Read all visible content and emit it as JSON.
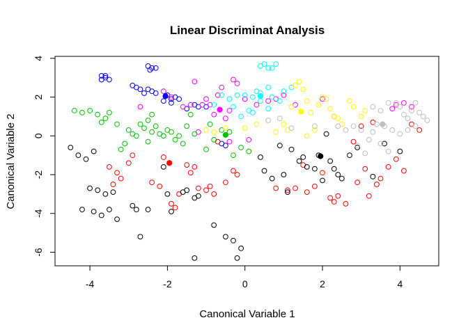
{
  "chart_data": {
    "type": "scatter",
    "title": "Linear Discriminat Analysis",
    "xlabel": "Canonical Variable 1",
    "ylabel": "Canonical Variable 2",
    "xlim": [
      -4.9,
      5.0
    ],
    "ylim": [
      -6.7,
      4.1
    ],
    "xticks": [
      -4,
      -2,
      0,
      2,
      4
    ],
    "yticks": [
      -6,
      -4,
      -2,
      0,
      2,
      4
    ],
    "grid": false,
    "legend": "none",
    "series": [
      {
        "color": "#0000ff",
        "points": [
          [
            -3.7,
            3.1
          ],
          [
            -3.6,
            3.0
          ],
          [
            -3.7,
            2.9
          ],
          [
            -3.5,
            2.9
          ],
          [
            -3.6,
            3.1
          ],
          [
            -2.9,
            2.6
          ],
          [
            -2.8,
            2.5
          ],
          [
            -2.7,
            2.4
          ],
          [
            -2.5,
            3.6
          ],
          [
            -2.4,
            3.5
          ],
          [
            -2.3,
            3.5
          ],
          [
            -2.45,
            3.4
          ],
          [
            -2.5,
            2.4
          ],
          [
            -2.4,
            2.3
          ],
          [
            -2.3,
            2.2
          ],
          [
            -2.6,
            2.2
          ],
          [
            -2.0,
            2.1
          ],
          [
            -1.9,
            1.9
          ],
          [
            -1.8,
            2.0
          ],
          [
            -2.1,
            1.8
          ],
          [
            -1.9,
            1.7
          ],
          [
            -1.7,
            1.9
          ],
          [
            -1.2,
            1.5
          ],
          [
            -1.3,
            1.6
          ],
          [
            -0.6,
            -0.4
          ],
          [
            -0.5,
            -0.5
          ],
          [
            -1.5,
            1.4
          ],
          [
            -1.0,
            1.5
          ]
        ],
        "centroid": [
          -2.05,
          2.05
        ]
      },
      {
        "color": "#00c000",
        "points": [
          [
            -4.4,
            1.3
          ],
          [
            -4.2,
            1.2
          ],
          [
            -4.0,
            1.3
          ],
          [
            -3.8,
            1.1
          ],
          [
            -3.7,
            0.7
          ],
          [
            -3.5,
            1.2
          ],
          [
            -3.3,
            0.6
          ],
          [
            -3.0,
            0.3
          ],
          [
            -3.1,
            -0.4
          ],
          [
            -2.8,
            0.0
          ],
          [
            -2.7,
            0.6
          ],
          [
            -2.6,
            0.4
          ],
          [
            -2.5,
            0.8
          ],
          [
            -2.4,
            1.1
          ],
          [
            -2.3,
            0.5
          ],
          [
            -2.2,
            0.1
          ],
          [
            -2.1,
            0.0
          ],
          [
            -2.0,
            0.3
          ],
          [
            -1.9,
            0.2
          ],
          [
            -1.8,
            -0.2
          ],
          [
            -1.7,
            0.0
          ],
          [
            -1.6,
            -0.4
          ],
          [
            -1.5,
            0.5
          ],
          [
            -1.3,
            0.1
          ],
          [
            -1.0,
            -0.7
          ],
          [
            -0.8,
            -0.2
          ],
          [
            -0.6,
            0.3
          ],
          [
            -0.4,
            0.2
          ],
          [
            -0.3,
            -1.0
          ],
          [
            -0.1,
            -0.6
          ],
          [
            0.1,
            -0.8
          ],
          [
            -2.5,
            -0.3
          ],
          [
            -3.2,
            -0.7
          ],
          [
            -2.9,
            0.1
          ],
          [
            -0.9,
            0.6
          ],
          [
            -1.4,
            1.1
          ],
          [
            -2.4,
            0.2
          ],
          [
            -3.6,
            0.9
          ]
        ],
        "centroid": [
          -0.5,
          0.05
        ]
      },
      {
        "color": "#ff0000",
        "points": [
          [
            -3.5,
            -1.6
          ],
          [
            -3.3,
            -1.9
          ],
          [
            -3.2,
            -2.2
          ],
          [
            -3.4,
            -2.5
          ],
          [
            -3.0,
            -1.4
          ],
          [
            -2.9,
            -1.0
          ],
          [
            -2.4,
            -2.4
          ],
          [
            -2.2,
            -2.6
          ],
          [
            -1.9,
            -3.5
          ],
          [
            -1.8,
            -3.7
          ],
          [
            -1.7,
            -3.0
          ],
          [
            -1.5,
            -1.5
          ],
          [
            -1.4,
            -1.9
          ],
          [
            -1.2,
            -2.7
          ],
          [
            -1.0,
            -2.8
          ],
          [
            -0.9,
            -2.6
          ],
          [
            -0.8,
            -3.0
          ],
          [
            -0.5,
            -2.4
          ],
          [
            -0.3,
            -1.8
          ],
          [
            -0.2,
            -2.0
          ],
          [
            0.8,
            -2.7
          ],
          [
            1.1,
            -2.8
          ],
          [
            1.3,
            -2.7
          ],
          [
            1.5,
            -1.5
          ],
          [
            1.6,
            -2.9
          ],
          [
            1.8,
            -2.6
          ],
          [
            2.0,
            -1.9
          ],
          [
            2.2,
            -3.2
          ],
          [
            2.3,
            -3.4
          ],
          [
            2.4,
            -3.1
          ],
          [
            2.6,
            -3.5
          ],
          [
            2.9,
            -2.4
          ],
          [
            3.1,
            -1.7
          ],
          [
            3.2,
            -3.1
          ],
          [
            3.4,
            -2.5
          ],
          [
            3.5,
            -2.2
          ],
          [
            3.7,
            -1.6
          ],
          [
            3.9,
            -1.2
          ],
          [
            4.1,
            -1.8
          ],
          [
            3.0,
            0.5
          ],
          [
            2.8,
            -0.3
          ],
          [
            -1.3,
            -1.6
          ],
          [
            -2.1,
            -1.1
          ],
          [
            -0.7,
            -0.3
          ],
          [
            3.3,
            0.7
          ],
          [
            4.3,
            0.6
          ],
          [
            4.5,
            0.3
          ]
        ],
        "centroid": [
          -1.95,
          -1.4
        ]
      },
      {
        "color": "#000000",
        "points": [
          [
            -4.5,
            -0.6
          ],
          [
            -4.3,
            -1.0
          ],
          [
            -4.1,
            -1.2
          ],
          [
            -3.9,
            -0.8
          ],
          [
            -4.0,
            -2.7
          ],
          [
            -3.8,
            -2.8
          ],
          [
            -3.6,
            -3.0
          ],
          [
            -3.4,
            -2.9
          ],
          [
            -4.2,
            -3.8
          ],
          [
            -3.9,
            -3.9
          ],
          [
            -3.7,
            -4.1
          ],
          [
            -3.5,
            -3.8
          ],
          [
            -3.3,
            -4.3
          ],
          [
            -2.9,
            -3.6
          ],
          [
            -2.8,
            -3.8
          ],
          [
            -2.7,
            -5.2
          ],
          [
            -2.5,
            -3.8
          ],
          [
            -2.1,
            -1.6
          ],
          [
            -2.0,
            -3.0
          ],
          [
            -1.9,
            -3.9
          ],
          [
            -1.5,
            -2.8
          ],
          [
            -1.3,
            -3.2
          ],
          [
            -1.2,
            -3.1
          ],
          [
            -1.3,
            -6.3
          ],
          [
            -0.5,
            -5.2
          ],
          [
            -0.3,
            -5.4
          ],
          [
            -0.2,
            -6.3
          ],
          [
            -0.1,
            -5.8
          ],
          [
            0.5,
            -1.8
          ],
          [
            0.7,
            -2.2
          ],
          [
            0.9,
            -0.5
          ],
          [
            1.0,
            -2.0
          ],
          [
            1.1,
            -2.9
          ],
          [
            1.2,
            -0.7
          ],
          [
            1.4,
            -1.3
          ],
          [
            1.5,
            -1.1
          ],
          [
            1.6,
            -1.6
          ],
          [
            1.8,
            -1.7
          ],
          [
            1.9,
            -1.0
          ],
          [
            2.0,
            -2.3
          ],
          [
            2.1,
            0.1
          ],
          [
            2.2,
            -1.3
          ],
          [
            2.3,
            -1.7
          ],
          [
            2.4,
            -2.0
          ],
          [
            2.5,
            -2.2
          ],
          [
            2.7,
            -1.0
          ],
          [
            2.9,
            -0.6
          ],
          [
            3.3,
            -2.1
          ],
          [
            3.6,
            -0.4
          ],
          [
            4.0,
            -0.8
          ],
          [
            -0.8,
            -4.6
          ],
          [
            -1.6,
            -2.9
          ],
          [
            0.4,
            -1.1
          ]
        ],
        "centroid": [
          1.95,
          -1.05
        ]
      },
      {
        "color": "#ff00ff",
        "points": [
          [
            -2.7,
            1.5
          ],
          [
            -2.1,
            2.3
          ],
          [
            -1.9,
            2.0
          ],
          [
            -1.6,
            1.5
          ],
          [
            -1.4,
            1.6
          ],
          [
            -1.1,
            1.6
          ],
          [
            -1.0,
            1.9
          ],
          [
            -0.9,
            1.6
          ],
          [
            -0.7,
            2.1
          ],
          [
            -0.6,
            2.5
          ],
          [
            -0.4,
            1.3
          ],
          [
            -0.3,
            2.9
          ],
          [
            -0.2,
            2.7
          ],
          [
            0.0,
            1.9
          ],
          [
            0.3,
            1.6
          ],
          [
            0.6,
            1.8
          ],
          [
            0.8,
            1.9
          ],
          [
            1.0,
            2.1
          ],
          [
            1.3,
            1.6
          ],
          [
            2.0,
            1.9
          ],
          [
            -0.5,
            0.9
          ],
          [
            -0.8,
            1.1
          ],
          [
            -1.2,
            0.2
          ],
          [
            -0.4,
            -0.3
          ],
          [
            0.1,
            -0.2
          ],
          [
            2.3,
            1.0
          ],
          [
            3.8,
            1.4
          ],
          [
            3.9,
            1.6
          ],
          [
            4.1,
            1.7
          ],
          [
            4.3,
            1.5
          ],
          [
            -1.3,
            2.8
          ]
        ],
        "centroid": [
          -0.65,
          1.35
        ]
      },
      {
        "color": "#00ffff",
        "points": [
          [
            0.4,
            3.6
          ],
          [
            0.5,
            3.7
          ],
          [
            0.6,
            3.5
          ],
          [
            0.7,
            3.5
          ],
          [
            0.8,
            3.7
          ],
          [
            -0.8,
            1.6
          ],
          [
            -0.6,
            2.1
          ],
          [
            -0.4,
            1.9
          ],
          [
            -0.2,
            2.1
          ],
          [
            0.0,
            2.1
          ],
          [
            0.1,
            1.3
          ],
          [
            0.2,
            2.0
          ],
          [
            0.3,
            2.3
          ],
          [
            0.4,
            2.2
          ],
          [
            0.6,
            2.5
          ],
          [
            0.7,
            2.0
          ],
          [
            0.9,
            1.8
          ],
          [
            1.0,
            2.3
          ],
          [
            1.2,
            2.5
          ],
          [
            -0.3,
            1.5
          ],
          [
            -0.1,
            1.0
          ],
          [
            0.2,
            1.2
          ],
          [
            0.4,
            1.8
          ],
          [
            0.6,
            1.4
          ]
        ],
        "centroid": [
          0.4,
          2.05
        ]
      },
      {
        "color": "#ffff00",
        "points": [
          [
            1.2,
            1.5
          ],
          [
            1.3,
            2.6
          ],
          [
            1.4,
            2.8
          ],
          [
            1.5,
            2.4
          ],
          [
            1.6,
            1.8
          ],
          [
            1.7,
            1.2
          ],
          [
            1.8,
            0.3
          ],
          [
            1.9,
            1.6
          ],
          [
            2.0,
            2.0
          ],
          [
            2.1,
            1.9
          ],
          [
            2.2,
            1.4
          ],
          [
            2.3,
            1.0
          ],
          [
            2.5,
            0.6
          ],
          [
            2.7,
            1.8
          ],
          [
            2.8,
            1.5
          ],
          [
            3.0,
            1.0
          ],
          [
            3.1,
            1.3
          ],
          [
            1.0,
            0.6
          ],
          [
            0.8,
            0.2
          ],
          [
            -1.0,
            0.3
          ],
          [
            -0.8,
            0.2
          ],
          [
            -0.5,
            0.4
          ],
          [
            0.0,
            0.4
          ],
          [
            0.3,
            0.6
          ],
          [
            1.6,
            0.0
          ],
          [
            2.4,
            0.9
          ],
          [
            1.1,
            0.3
          ]
        ],
        "centroid": [
          1.45,
          1.25
        ]
      },
      {
        "color": "#bebebe",
        "points": [
          [
            3.3,
            1.5
          ],
          [
            3.5,
            1.3
          ],
          [
            3.7,
            1.7
          ],
          [
            3.9,
            1.7
          ],
          [
            4.0,
            1.5
          ],
          [
            4.1,
            1.1
          ],
          [
            4.2,
            0.9
          ],
          [
            4.3,
            1.3
          ],
          [
            4.4,
            1.7
          ],
          [
            4.5,
            1.2
          ],
          [
            4.6,
            1.0
          ],
          [
            4.7,
            0.8
          ],
          [
            4.4,
            0.5
          ],
          [
            4.2,
            0.3
          ],
          [
            4.0,
            0.1
          ],
          [
            3.8,
            0.3
          ],
          [
            3.6,
            0.5
          ],
          [
            3.4,
            0.6
          ],
          [
            3.3,
            0.2
          ],
          [
            3.2,
            -0.2
          ],
          [
            3.5,
            -0.4
          ],
          [
            3.7,
            -0.8
          ],
          [
            3.0,
            0.3
          ],
          [
            2.8,
            0.5
          ],
          [
            2.6,
            0.3
          ],
          [
            2.4,
            0.5
          ],
          [
            2.9,
            -0.5
          ],
          [
            1.8,
            0.5
          ],
          [
            1.2,
            0.4
          ],
          [
            0.9,
            0.9
          ],
          [
            0.6,
            0.8
          ],
          [
            3.1,
            -0.9
          ]
        ],
        "centroid": [
          3.55,
          0.6
        ]
      }
    ]
  }
}
